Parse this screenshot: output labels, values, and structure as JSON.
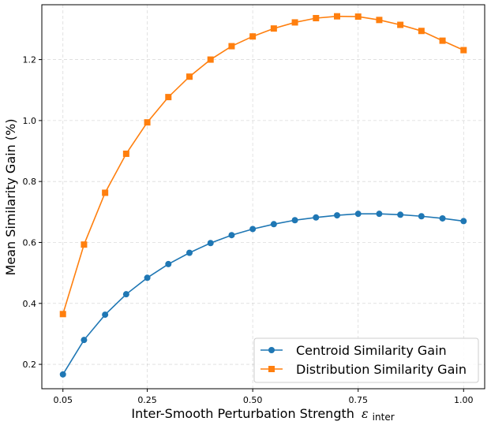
{
  "chart_data": {
    "type": "line",
    "title": "",
    "xlabel": "Inter-Smooth Perturbation Strength",
    "xlabel_symbol": "ε",
    "xlabel_subscript": "inter",
    "ylabel": "Mean Similarity Gain (%)",
    "xlim": [
      0.0,
      1.05
    ],
    "ylim": [
      0.12,
      1.38
    ],
    "xticks": [
      0.05,
      0.25,
      0.5,
      0.75,
      1.0
    ],
    "xtick_labels": [
      "0.05",
      "0.25",
      "0.50",
      "0.75",
      "1.00"
    ],
    "yticks": [
      0.2,
      0.4,
      0.6,
      0.8,
      1.0,
      1.2
    ],
    "ytick_labels": [
      "0.2",
      "0.4",
      "0.6",
      "0.8",
      "1.0",
      "1.2"
    ],
    "grid": true,
    "legend_position": "bottom-right",
    "x": [
      0.05,
      0.1,
      0.15,
      0.2,
      0.25,
      0.3,
      0.35,
      0.4,
      0.45,
      0.5,
      0.55,
      0.6,
      0.65,
      0.7,
      0.75,
      0.8,
      0.85,
      0.9,
      0.95,
      1.0
    ],
    "series": [
      {
        "name": "Centroid Similarity Gain",
        "color": "#1f77b4",
        "marker": "circle",
        "values": [
          0.167,
          0.28,
          0.363,
          0.43,
          0.484,
          0.529,
          0.566,
          0.598,
          0.624,
          0.644,
          0.66,
          0.673,
          0.682,
          0.689,
          0.694,
          0.694,
          0.691,
          0.686,
          0.679,
          0.67
        ]
      },
      {
        "name": "Distribution Similarity Gain",
        "color": "#ff7f0e",
        "marker": "square",
        "values": [
          0.365,
          0.593,
          0.763,
          0.891,
          0.994,
          1.077,
          1.144,
          1.2,
          1.244,
          1.276,
          1.302,
          1.322,
          1.336,
          1.342,
          1.341,
          1.33,
          1.314,
          1.294,
          1.262,
          1.231
        ]
      }
    ]
  }
}
